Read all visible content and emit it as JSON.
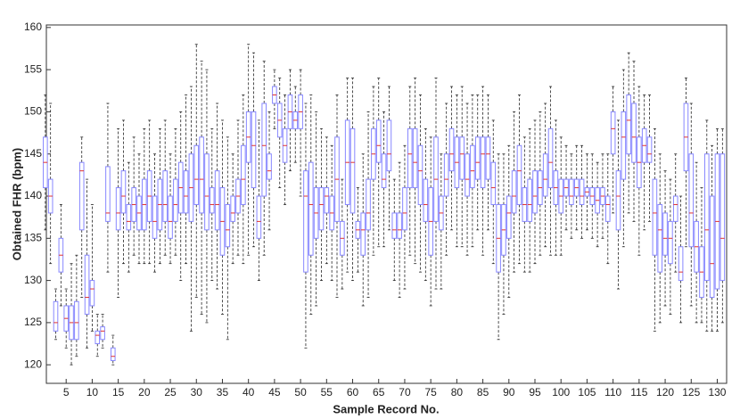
{
  "chart_data": {
    "type": "box",
    "x_label": "Sample Record No.",
    "y_label": "Obtained FHR (bpm)",
    "box_color": "#8888ff",
    "median_color": "#e03030",
    "whisker_color": "#222222",
    "xlim": [
      1.2,
      131.8
    ],
    "ylim": [
      117.8,
      160.3
    ],
    "xticks": [
      5,
      10,
      15,
      20,
      25,
      30,
      35,
      40,
      45,
      50,
      55,
      60,
      65,
      70,
      75,
      80,
      85,
      90,
      95,
      100,
      105,
      110,
      115,
      120,
      125,
      130
    ],
    "yticks": [
      120,
      125,
      130,
      135,
      140,
      145,
      150,
      155,
      160
    ],
    "x": [
      1,
      2,
      3,
      4,
      5,
      6,
      7,
      8,
      9,
      10,
      11,
      12,
      13,
      14,
      15,
      16,
      17,
      18,
      19,
      20,
      21,
      22,
      23,
      24,
      25,
      26,
      27,
      28,
      29,
      30,
      31,
      32,
      33,
      34,
      35,
      36,
      37,
      38,
      39,
      40,
      41,
      42,
      43,
      44,
      45,
      46,
      47,
      48,
      49,
      50,
      51,
      52,
      53,
      54,
      55,
      56,
      57,
      58,
      59,
      60,
      61,
      62,
      63,
      64,
      65,
      66,
      67,
      68,
      69,
      70,
      71,
      72,
      73,
      74,
      75,
      76,
      77,
      78,
      79,
      80,
      81,
      82,
      83,
      84,
      85,
      86,
      87,
      88,
      89,
      90,
      91,
      92,
      93,
      94,
      95,
      96,
      97,
      98,
      99,
      100,
      101,
      102,
      103,
      104,
      105,
      106,
      107,
      108,
      109,
      110,
      111,
      112,
      113,
      114,
      115,
      116,
      117,
      118,
      119,
      120,
      121,
      122,
      123,
      124,
      125,
      126,
      127,
      128,
      129,
      130,
      131
    ],
    "whisker_low": [
      136,
      132,
      123,
      127,
      122,
      120,
      121,
      128,
      122,
      124,
      121,
      122,
      131,
      120,
      128,
      132,
      131,
      133,
      132,
      132,
      132,
      131,
      132,
      133,
      132,
      133,
      130,
      132,
      124,
      128,
      126,
      125,
      130,
      129,
      126,
      123,
      132,
      133,
      132,
      133,
      134,
      130,
      133,
      136,
      148,
      141,
      139,
      143,
      144,
      140,
      122,
      126,
      127,
      130,
      132,
      130,
      128,
      129,
      131,
      130,
      131,
      127,
      128,
      133,
      134,
      134,
      136,
      130,
      128,
      129,
      133,
      132,
      131,
      130,
      127,
      129,
      129,
      133,
      136,
      134,
      134,
      133,
      134,
      136,
      133,
      136,
      132,
      123,
      126,
      128,
      131,
      132,
      131,
      131,
      132,
      133,
      134,
      133,
      133,
      133,
      136,
      135,
      136,
      135,
      136,
      135,
      134,
      135,
      132,
      138,
      129,
      134,
      138,
      137,
      133,
      136,
      137,
      124,
      125,
      127,
      126,
      131,
      125,
      134,
      127,
      125,
      125,
      124,
      124,
      124,
      125
    ],
    "q1": [
      141,
      138,
      124,
      131,
      124,
      123,
      123,
      136,
      126,
      127,
      122.5,
      123,
      137,
      120.5,
      136,
      138,
      136,
      137,
      136,
      136,
      137,
      135,
      136,
      137,
      135,
      137,
      138,
      138,
      137,
      139,
      138,
      136,
      138,
      136,
      133,
      134,
      137,
      138,
      139,
      144,
      141,
      135,
      140,
      142,
      151,
      147,
      144,
      148,
      148,
      148,
      131,
      133,
      135,
      136,
      138,
      136,
      137,
      133,
      139,
      138,
      135,
      133,
      136,
      142,
      144,
      141,
      143,
      135,
      135,
      136,
      141,
      141,
      139,
      137,
      133,
      137,
      136,
      140,
      143,
      141,
      142,
      140,
      141,
      142,
      141,
      142,
      139,
      131,
      133,
      135,
      138,
      139,
      137,
      137,
      138,
      139,
      140,
      141,
      139,
      138,
      140,
      139,
      140,
      139,
      140,
      139,
      138,
      139,
      137,
      145,
      136,
      142,
      145,
      144,
      141,
      144,
      144,
      133,
      131,
      133,
      132,
      137,
      130,
      143,
      134,
      131,
      128,
      130,
      128,
      129,
      130
    ],
    "median": [
      144,
      140,
      125,
      133,
      125.5,
      125,
      125,
      143,
      128,
      129,
      123.5,
      124,
      138,
      121,
      138,
      140,
      137,
      139,
      138,
      139,
      140,
      137,
      139,
      139,
      137,
      139,
      141,
      140,
      141,
      142,
      142,
      140,
      139,
      139,
      137,
      136,
      138,
      140,
      142,
      147,
      146,
      137,
      146,
      143,
      152,
      149,
      146,
      150,
      149,
      150,
      140,
      139,
      138,
      139,
      140,
      138,
      142,
      135,
      144,
      144,
      136,
      136,
      138,
      145,
      146,
      142,
      145,
      136,
      136,
      138,
      145,
      144,
      143,
      139,
      137,
      142,
      138,
      142,
      145,
      144,
      145,
      142,
      143,
      144,
      145,
      145,
      141,
      135,
      136,
      138,
      140,
      143,
      139,
      139,
      140,
      141,
      142,
      144,
      141,
      140,
      141,
      140,
      141,
      140,
      140.5,
      140,
      139.5,
      140,
      139,
      148,
      140,
      147,
      149,
      147,
      144,
      146,
      145,
      138,
      136,
      135,
      135,
      139,
      131,
      147,
      138,
      134,
      131,
      136,
      132,
      137,
      135
    ],
    "q3": [
      147,
      142,
      127.5,
      135,
      127,
      127,
      127.5,
      144,
      133,
      130,
      124,
      124.5,
      143.5,
      122,
      141,
      143,
      139,
      141,
      140,
      142,
      143,
      140,
      142,
      143,
      140,
      142,
      144,
      143,
      145,
      146,
      147,
      145,
      141,
      143,
      141,
      139,
      140,
      142,
      146,
      150,
      150,
      140,
      151,
      145,
      153,
      151,
      148,
      152,
      150,
      152,
      143,
      144,
      141,
      141,
      141,
      140,
      147,
      137,
      149,
      148,
      137,
      138,
      142,
      148,
      149,
      145,
      149,
      138,
      138,
      141,
      148,
      148,
      146,
      142,
      141,
      147,
      140,
      145,
      148,
      147,
      147,
      145,
      146,
      147,
      147,
      147,
      144,
      139,
      139,
      140,
      143,
      146,
      141,
      142,
      143,
      143,
      145,
      148,
      143,
      142,
      142,
      142,
      142,
      142,
      141,
      141,
      141,
      141,
      140,
      150,
      143,
      150,
      152,
      151,
      147,
      148,
      147,
      142,
      139,
      138,
      137,
      140,
      134,
      151,
      145,
      137,
      134,
      145,
      140,
      145,
      145
    ],
    "whisker_high": [
      152,
      151,
      129,
      139,
      129,
      132,
      133,
      147,
      142,
      139,
      126,
      126,
      151,
      123.5,
      148,
      149,
      144,
      147,
      145,
      148,
      149,
      145,
      148,
      149,
      145,
      148,
      150,
      152,
      153,
      158,
      156,
      155,
      148,
      151,
      149,
      147,
      145,
      149,
      152,
      158,
      157,
      149,
      156,
      150,
      155,
      154,
      152,
      155,
      153,
      155,
      151,
      152,
      150,
      148,
      147,
      146,
      152,
      142,
      154,
      154,
      141,
      145,
      150,
      153,
      154,
      150,
      153,
      142,
      144,
      146,
      153,
      154,
      152,
      148,
      147,
      154,
      145,
      151,
      153,
      152,
      153,
      151,
      152,
      152,
      153,
      152,
      149,
      145,
      145,
      146,
      150,
      152,
      147,
      148,
      149,
      150,
      151,
      153,
      149,
      147,
      146,
      145,
      146,
      146,
      145,
      145,
      144,
      145,
      145,
      153,
      149,
      155,
      157,
      156,
      153,
      152,
      152,
      148,
      145,
      143,
      142,
      145,
      140,
      154,
      151,
      144,
      141,
      149,
      146,
      148,
      148
    ]
  }
}
